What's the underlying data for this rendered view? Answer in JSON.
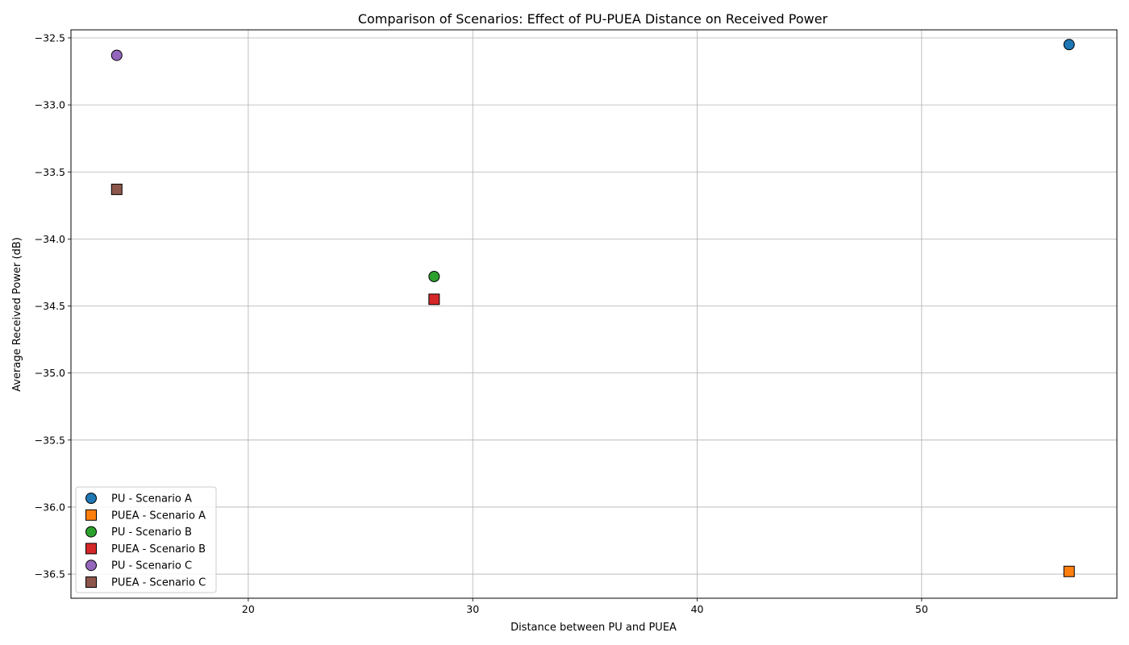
{
  "chart_data": {
    "type": "scatter",
    "title": "Comparison of Scenarios: Effect of PU-PUEA Distance on Received Power",
    "xlabel": "Distance between PU and PUEA",
    "ylabel": "Average Received Power (dB)",
    "xlim": [
      12.1,
      58.7
    ],
    "ylim": [
      -36.68,
      -32.44
    ],
    "xticks": [
      20,
      30,
      40,
      50
    ],
    "xtick_labels": [
      "20",
      "30",
      "40",
      "50"
    ],
    "yticks": [
      -32.5,
      -33.0,
      -33.5,
      -34.0,
      -34.5,
      -35.0,
      -35.5,
      -36.0,
      -36.5
    ],
    "ytick_labels": [
      "−32.5",
      "−33.0",
      "−33.5",
      "−34.0",
      "−34.5",
      "−35.0",
      "−35.5",
      "−36.0",
      "−36.5"
    ],
    "grid": true,
    "legend_position": "lower-left",
    "series": [
      {
        "name": "PU - Scenario A",
        "marker": "circle",
        "color": "#1f77b4",
        "points": [
          {
            "x": 56.57,
            "y": -32.55
          }
        ]
      },
      {
        "name": "PUEA - Scenario A",
        "marker": "square",
        "color": "#ff7f0e",
        "points": [
          {
            "x": 56.57,
            "y": -36.48
          }
        ]
      },
      {
        "name": "PU - Scenario B",
        "marker": "circle",
        "color": "#2ca02c",
        "points": [
          {
            "x": 28.28,
            "y": -34.28
          }
        ]
      },
      {
        "name": "PUEA - Scenario B",
        "marker": "square",
        "color": "#d62728",
        "points": [
          {
            "x": 28.28,
            "y": -34.45
          }
        ]
      },
      {
        "name": "PU - Scenario C",
        "marker": "circle",
        "color": "#9467bd",
        "points": [
          {
            "x": 14.14,
            "y": -32.63
          }
        ]
      },
      {
        "name": "PUEA - Scenario C",
        "marker": "square",
        "color": "#8c564b",
        "points": [
          {
            "x": 14.14,
            "y": -33.63
          }
        ]
      }
    ]
  }
}
